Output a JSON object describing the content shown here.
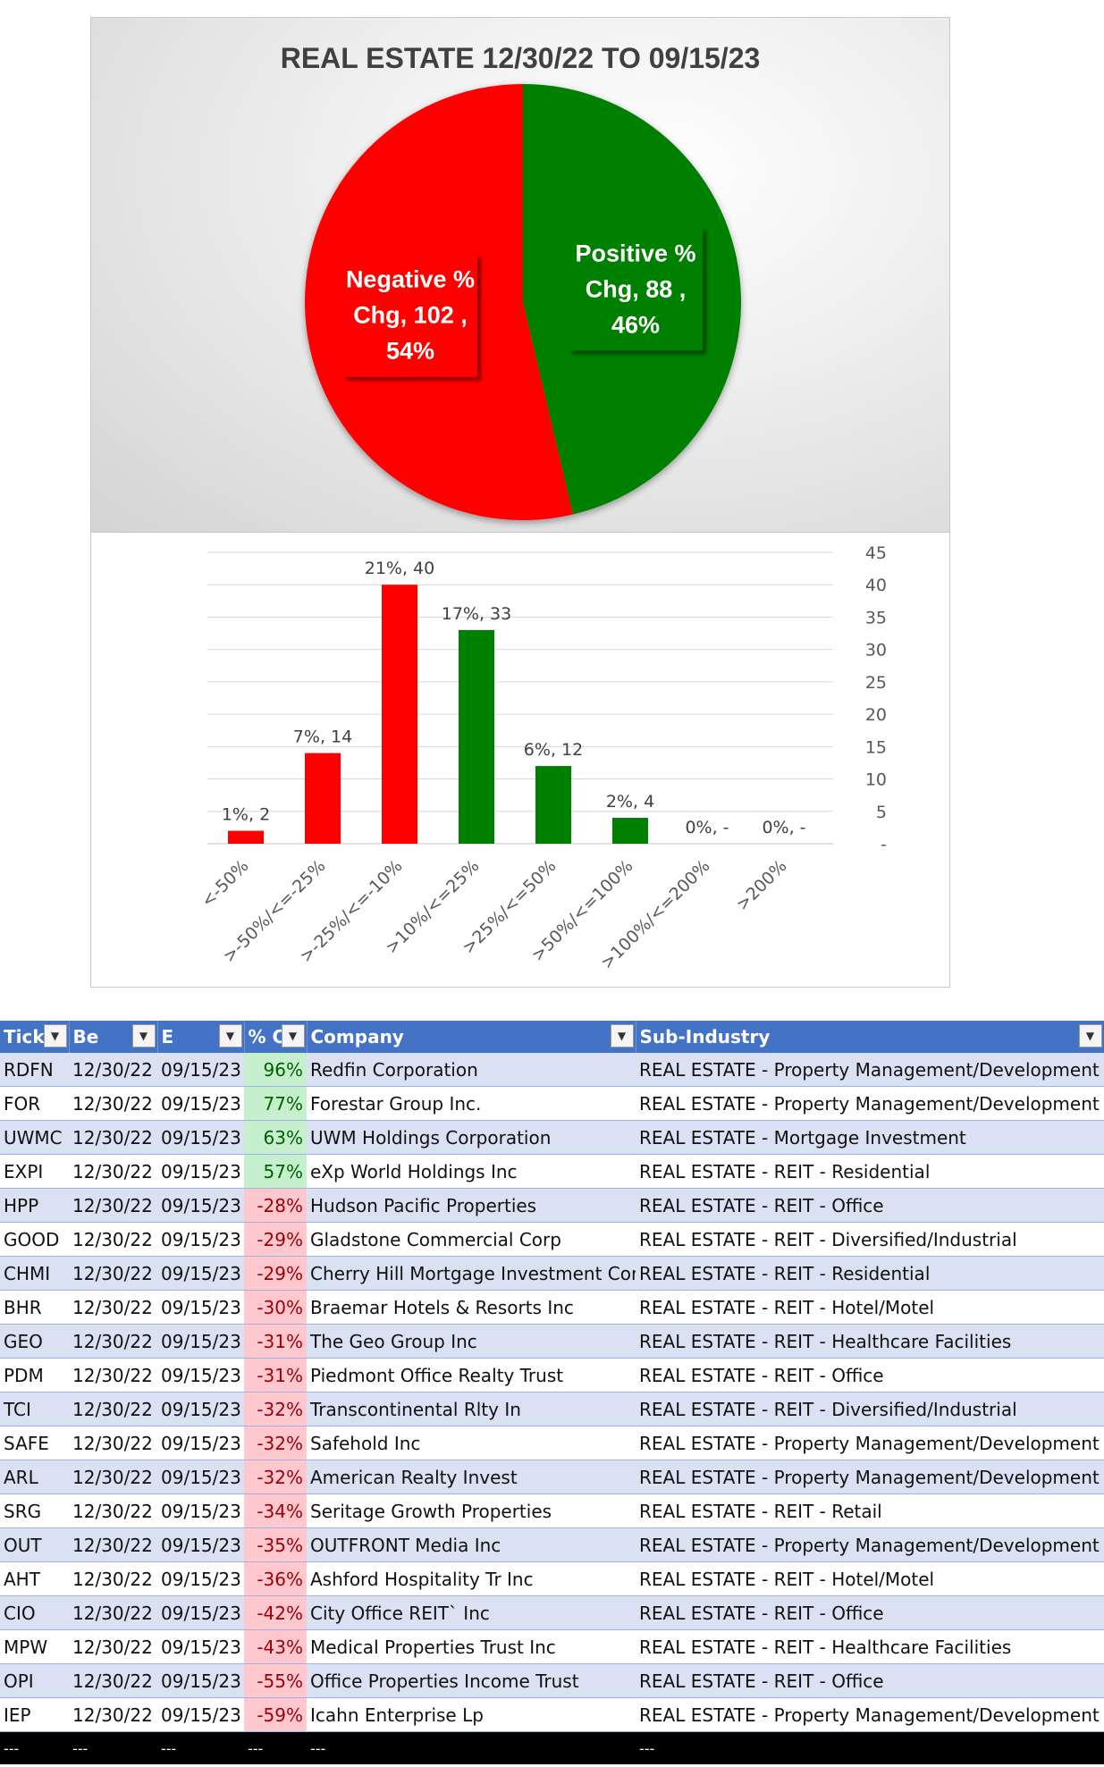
{
  "chart_data": [
    {
      "type": "pie",
      "title": "REAL ESTATE 12/30/22 TO 09/15/23",
      "slices": [
        {
          "label": "Negative % Chg",
          "value": 102,
          "percent": "54%",
          "color": "#ff0000",
          "data_label_lines": [
            "Negative %",
            "Chg,  102 ,",
            "54%"
          ]
        },
        {
          "label": "Positive % Chg",
          "value": 88,
          "percent": "46%",
          "color": "#008000",
          "data_label_lines": [
            "Positive %",
            "Chg,  88 ,",
            "46%"
          ]
        }
      ]
    },
    {
      "type": "bar",
      "categories": [
        "<-50%",
        ">-50%/<=-25%",
        ">-25%/<=-10%",
        ">10%/<=25%",
        ">25%/<=50%",
        ">50%/<=100%",
        ">100%/<=200%",
        ">200%"
      ],
      "values": [
        2,
        14,
        40,
        33,
        12,
        4,
        0,
        0
      ],
      "data_labels": [
        "1%,  2",
        "7%,  14",
        "21%,  40",
        "17%,  33",
        "6%,  12",
        "2%,  4",
        "0%,  -",
        "0%,  -"
      ],
      "bar_colors": [
        "#ff0000",
        "#ff0000",
        "#ff0000",
        "#008000",
        "#008000",
        "#008000",
        "#008000",
        "#008000"
      ],
      "ylim": [
        0,
        45
      ],
      "y_ticks": [
        "-",
        "5",
        "10",
        "15",
        "20",
        "25",
        "30",
        "35",
        "40",
        "45"
      ],
      "y_axis_side": "right",
      "grid": true
    }
  ],
  "table": {
    "headers": [
      "Tick",
      "Be",
      "E",
      "% C",
      "Company",
      "Sub-Industry"
    ],
    "rows": [
      {
        "ticker": "RDFN",
        "begin": "12/30/22",
        "end": "09/15/23",
        "pct": "96%",
        "company": "Redfin Corporation",
        "sub": "REAL ESTATE - Property Management/Development"
      },
      {
        "ticker": "FOR",
        "begin": "12/30/22",
        "end": "09/15/23",
        "pct": "77%",
        "company": "Forestar Group Inc.",
        "sub": "REAL ESTATE - Property Management/Development"
      },
      {
        "ticker": "UWMC",
        "begin": "12/30/22",
        "end": "09/15/23",
        "pct": "63%",
        "company": "UWM Holdings Corporation",
        "sub": "REAL ESTATE - Mortgage Investment"
      },
      {
        "ticker": "EXPI",
        "begin": "12/30/22",
        "end": "09/15/23",
        "pct": "57%",
        "company": "eXp World Holdings Inc",
        "sub": "REAL ESTATE - REIT - Residential"
      },
      {
        "ticker": "HPP",
        "begin": "12/30/22",
        "end": "09/15/23",
        "pct": "-28%",
        "company": "Hudson Pacific Properties",
        "sub": "REAL ESTATE - REIT - Office"
      },
      {
        "ticker": "GOOD",
        "begin": "12/30/22",
        "end": "09/15/23",
        "pct": "-29%",
        "company": "Gladstone Commercial Corp",
        "sub": "REAL ESTATE - REIT - Diversified/Industrial"
      },
      {
        "ticker": "CHMI",
        "begin": "12/30/22",
        "end": "09/15/23",
        "pct": "-29%",
        "company": "Cherry Hill Mortgage Investment Corp",
        "sub": "REAL ESTATE - REIT - Residential"
      },
      {
        "ticker": "BHR",
        "begin": "12/30/22",
        "end": "09/15/23",
        "pct": "-30%",
        "company": "Braemar Hotels & Resorts Inc",
        "sub": "REAL ESTATE - REIT - Hotel/Motel"
      },
      {
        "ticker": "GEO",
        "begin": "12/30/22",
        "end": "09/15/23",
        "pct": "-31%",
        "company": "The Geo Group Inc",
        "sub": "REAL ESTATE - REIT - Healthcare Facilities"
      },
      {
        "ticker": "PDM",
        "begin": "12/30/22",
        "end": "09/15/23",
        "pct": "-31%",
        "company": "Piedmont Office Realty Trust",
        "sub": "REAL ESTATE - REIT - Office"
      },
      {
        "ticker": "TCI",
        "begin": "12/30/22",
        "end": "09/15/23",
        "pct": "-32%",
        "company": "Transcontinental Rlty In",
        "sub": "REAL ESTATE - REIT - Diversified/Industrial"
      },
      {
        "ticker": "SAFE",
        "begin": "12/30/22",
        "end": "09/15/23",
        "pct": "-32%",
        "company": "Safehold Inc",
        "sub": "REAL ESTATE - Property Management/Development"
      },
      {
        "ticker": "ARL",
        "begin": "12/30/22",
        "end": "09/15/23",
        "pct": "-32%",
        "company": "American Realty Invest",
        "sub": "REAL ESTATE - Property Management/Development"
      },
      {
        "ticker": "SRG",
        "begin": "12/30/22",
        "end": "09/15/23",
        "pct": "-34%",
        "company": "Seritage Growth Properties",
        "sub": "REAL ESTATE - REIT - Retail"
      },
      {
        "ticker": "OUT",
        "begin": "12/30/22",
        "end": "09/15/23",
        "pct": "-35%",
        "company": "OUTFRONT Media Inc",
        "sub": "REAL ESTATE - Property Management/Development"
      },
      {
        "ticker": "AHT",
        "begin": "12/30/22",
        "end": "09/15/23",
        "pct": "-36%",
        "company": "Ashford Hospitality Tr Inc",
        "sub": "REAL ESTATE - REIT - Hotel/Motel"
      },
      {
        "ticker": "CIO",
        "begin": "12/30/22",
        "end": "09/15/23",
        "pct": "-42%",
        "company": "City Office REIT` Inc",
        "sub": "REAL ESTATE - REIT - Office"
      },
      {
        "ticker": "MPW",
        "begin": "12/30/22",
        "end": "09/15/23",
        "pct": "-43%",
        "company": "Medical Properties Trust Inc",
        "sub": "REAL ESTATE - REIT - Healthcare Facilities"
      },
      {
        "ticker": "OPI",
        "begin": "12/30/22",
        "end": "09/15/23",
        "pct": "-55%",
        "company": "Office Properties Income Trust",
        "sub": "REAL ESTATE - REIT - Office"
      },
      {
        "ticker": "IEP",
        "begin": "12/30/22",
        "end": "09/15/23",
        "pct": "-59%",
        "company": "Icahn Enterprise Lp",
        "sub": "REAL ESTATE - Property Management/Development"
      }
    ],
    "footer": [
      "---",
      "---",
      "---",
      "---",
      "---",
      "---"
    ]
  },
  "colors": {
    "header_blue": "#4472c4",
    "band_blue": "#d9e1f2",
    "positive_fill": "#c6efce",
    "negative_fill": "#ffc7ce"
  }
}
